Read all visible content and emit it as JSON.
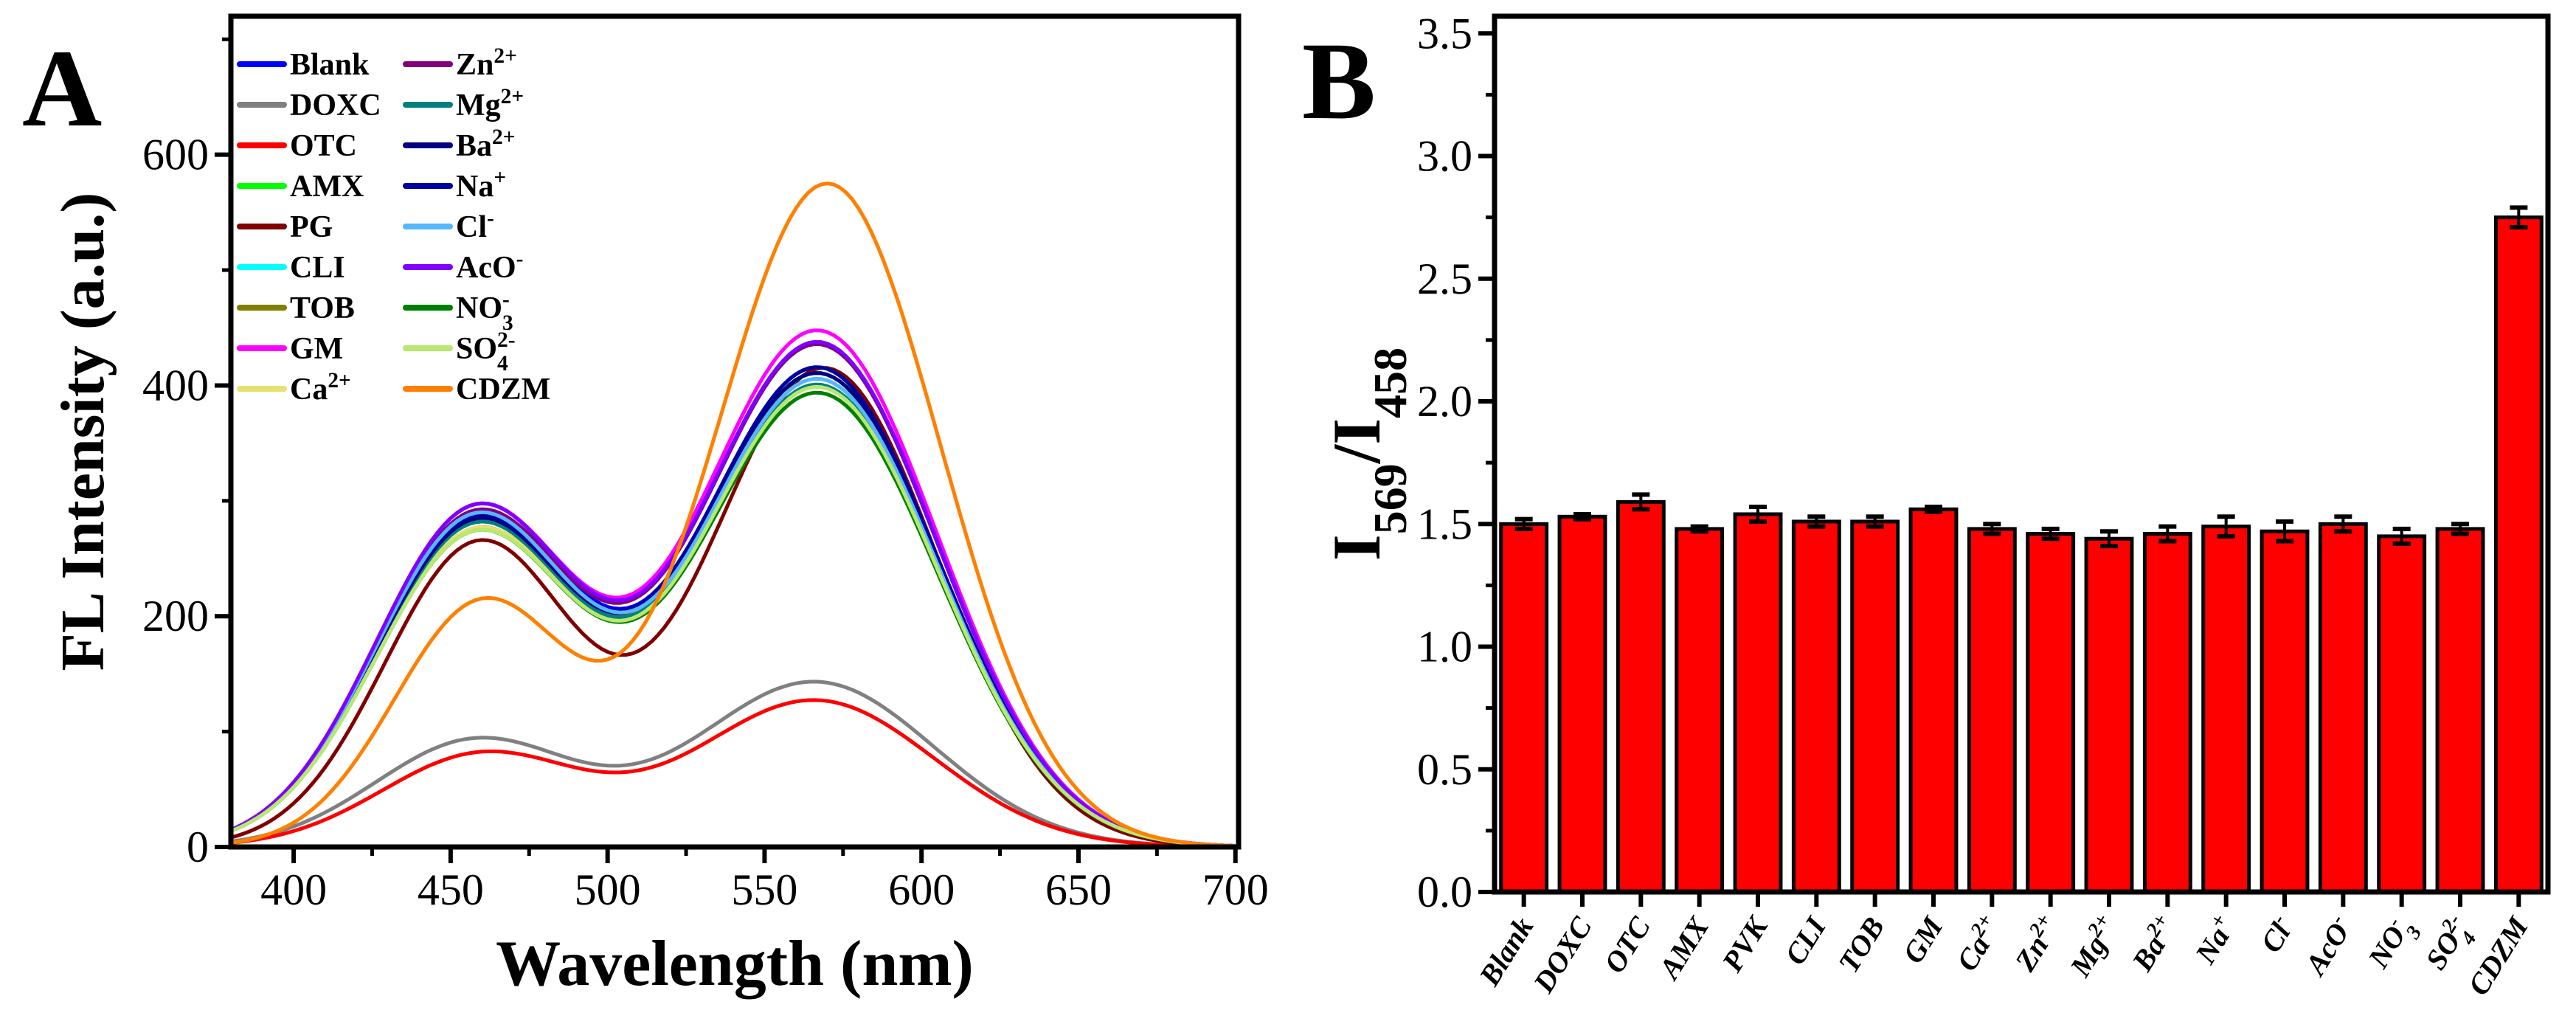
{
  "chart_data": [
    {
      "panel_label": "A",
      "type": "line",
      "xlabel": "Wavelength (nm)",
      "ylabel": "FL Intensity (a.u.)",
      "xlim": [
        380,
        701
      ],
      "ylim": [
        0,
        720
      ],
      "xticks": [
        400,
        450,
        500,
        550,
        600,
        650,
        700
      ],
      "yticks": [
        0,
        200,
        400,
        600
      ],
      "grid": false,
      "legend_placement": "top-left",
      "series": [
        {
          "name": "Blank",
          "sup": "",
          "sub": "",
          "color": "#0000ff",
          "bands": [
            [
              458,
              285,
              32
            ],
            [
              567,
              415,
              38
            ]
          ]
        },
        {
          "name": "DOXC",
          "sup": "",
          "sub": "",
          "color": "#808080",
          "bands": [
            [
              458,
              92,
              32
            ],
            [
              566,
              143,
              38
            ]
          ]
        },
        {
          "name": "OTC",
          "sup": "",
          "sub": "",
          "color": "#ff0000",
          "bands": [
            [
              460,
              80,
              32
            ],
            [
              566,
              127,
              38
            ]
          ]
        },
        {
          "name": "AMX",
          "sup": "",
          "sub": "",
          "color": "#00ff00",
          "bands": [
            [
              458,
              275,
              32
            ],
            [
              567,
              400,
              38
            ]
          ]
        },
        {
          "name": "PG",
          "sup": "",
          "sub": "",
          "color": "#800000",
          "bands": [
            [
              459,
              262,
              30
            ],
            [
              569,
              415,
              36
            ]
          ]
        },
        {
          "name": "CLI",
          "sup": "",
          "sub": "",
          "color": "#00ffff",
          "bands": [
            [
              458,
              280,
              32
            ],
            [
              567,
              410,
              38
            ]
          ]
        },
        {
          "name": "TOB",
          "sup": "",
          "sub": "",
          "color": "#808000",
          "bands": [
            [
              458,
              270,
              32
            ],
            [
              567,
              410,
              38
            ]
          ]
        },
        {
          "name": "GM",
          "sup": "",
          "sub": "",
          "color": "#ff00ff",
          "bands": [
            [
              458,
              290,
              32
            ],
            [
              567,
              447,
              38
            ]
          ]
        },
        {
          "name": "Ca",
          "sup": "2+",
          "sub": "",
          "color": "#e8e070",
          "bands": [
            [
              458,
              270,
              32
            ],
            [
              567,
              405,
              38
            ]
          ]
        },
        {
          "name": "Zn",
          "sup": "2+",
          "sub": "",
          "color": "#800080",
          "bands": [
            [
              458,
              285,
              32
            ],
            [
              567,
              435,
              38
            ]
          ]
        },
        {
          "name": "Mg",
          "sup": "2+",
          "sub": "",
          "color": "#008080",
          "bands": [
            [
              458,
              275,
              32
            ],
            [
              567,
              400,
              38
            ]
          ]
        },
        {
          "name": "Ba",
          "sup": "2+",
          "sub": "",
          "color": "#000080",
          "bands": [
            [
              458,
              278,
              32
            ],
            [
              567,
              410,
              38
            ]
          ]
        },
        {
          "name": "Na",
          "sup": "+",
          "sub": "",
          "color": "#0000a0",
          "bands": [
            [
              458,
              280,
              32
            ],
            [
              567,
              415,
              38
            ]
          ]
        },
        {
          "name": "Cl",
          "sup": "-",
          "sub": "",
          "color": "#55b8ff",
          "bands": [
            [
              458,
              283,
              32
            ],
            [
              567,
              405,
              38
            ]
          ]
        },
        {
          "name": "AcO",
          "sup": "-",
          "sub": "",
          "color": "#8000ff",
          "bands": [
            [
              458,
              290,
              32
            ],
            [
              567,
              437,
              38
            ]
          ]
        },
        {
          "name": "NO",
          "sup": "-",
          "sub": "3",
          "color": "#008000",
          "bands": [
            [
              458,
              268,
              32
            ],
            [
              567,
              393,
              38
            ]
          ]
        },
        {
          "name": "SO",
          "sup": "2-",
          "sub": "4",
          "color": "#b8e870",
          "bands": [
            [
              458,
              268,
              32
            ],
            [
              567,
              398,
              38
            ]
          ]
        },
        {
          "name": "CDZM",
          "sup": "",
          "sub": "",
          "color": "#ff8000",
          "bands": [
            [
              460,
              210,
              28
            ],
            [
              570,
              575,
              36
            ]
          ]
        }
      ]
    },
    {
      "panel_label": "B",
      "type": "bar",
      "ylabel": {
        "base": "I",
        "sub1": "569",
        "sep": "/I",
        "sub2": "458"
      },
      "ylim": [
        0,
        3.57
      ],
      "yticks": [
        "0.0",
        "0.5",
        "1.0",
        "1.5",
        "2.0",
        "2.5",
        "3.0",
        "3.5"
      ],
      "bar_color": "#ff0000",
      "grid": false,
      "categories": [
        {
          "name": "Blank",
          "sup": "",
          "sub": ""
        },
        {
          "name": "DOXC",
          "sup": "",
          "sub": ""
        },
        {
          "name": "OTC",
          "sup": "",
          "sub": ""
        },
        {
          "name": "AMX",
          "sup": "",
          "sub": ""
        },
        {
          "name": "PVK",
          "sup": "",
          "sub": ""
        },
        {
          "name": "CLI",
          "sup": "",
          "sub": ""
        },
        {
          "name": "TOB",
          "sup": "",
          "sub": ""
        },
        {
          "name": "GM",
          "sup": "",
          "sub": ""
        },
        {
          "name": "Ca",
          "sup": "2+",
          "sub": ""
        },
        {
          "name": "Zn",
          "sup": "2+",
          "sub": ""
        },
        {
          "name": "Mg",
          "sup": "2+",
          "sub": ""
        },
        {
          "name": "Ba",
          "sup": "2+",
          "sub": ""
        },
        {
          "name": "Na",
          "sup": "+",
          "sub": ""
        },
        {
          "name": "Cl",
          "sup": "-",
          "sub": ""
        },
        {
          "name": "AcO",
          "sup": "-",
          "sub": ""
        },
        {
          "name": "NO",
          "sup": "-",
          "sub": "3"
        },
        {
          "name": "SO",
          "sup": "2-",
          "sub": "4"
        },
        {
          "name": "CDZM",
          "sup": "",
          "sub": ""
        }
      ],
      "values": [
        1.5,
        1.53,
        1.59,
        1.48,
        1.54,
        1.51,
        1.51,
        1.56,
        1.48,
        1.46,
        1.44,
        1.46,
        1.49,
        1.47,
        1.5,
        1.45,
        1.48,
        2.75
      ],
      "errors": [
        0.02,
        0.01,
        0.03,
        0.01,
        0.03,
        0.02,
        0.02,
        0.01,
        0.02,
        0.02,
        0.03,
        0.03,
        0.04,
        0.04,
        0.03,
        0.03,
        0.02,
        0.04
      ]
    }
  ]
}
